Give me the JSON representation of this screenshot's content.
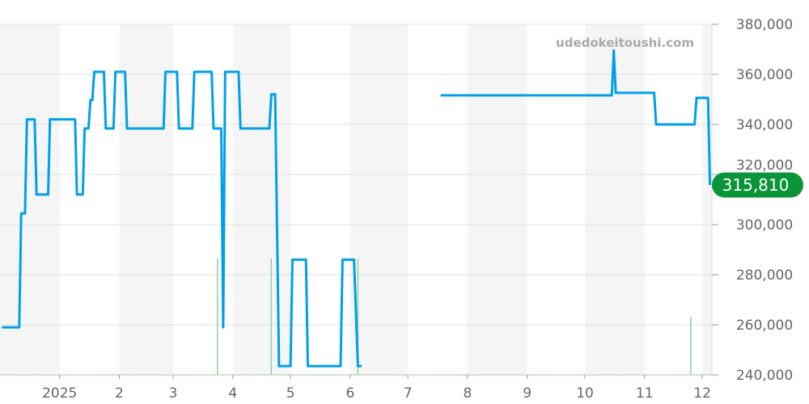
{
  "chart_data": {
    "type": "line",
    "watermark": "udedokeitoushi.com",
    "x_range": [
      "2024-12-01",
      "2025-12-06"
    ],
    "ylim": [
      240000,
      380000
    ],
    "y_ticks": [
      "240,000",
      "260,000",
      "280,000",
      "300,000",
      "320,000",
      "340,000",
      "360,000",
      "380,000"
    ],
    "y_tick_values": [
      240000,
      260000,
      280000,
      300000,
      320000,
      340000,
      360000,
      380000
    ],
    "x_ticks": [
      {
        "date": "2025-01-01",
        "label": "2025"
      },
      {
        "date": "2025-02-01",
        "label": "2"
      },
      {
        "date": "2025-03-01",
        "label": "3"
      },
      {
        "date": "2025-04-01",
        "label": "4"
      },
      {
        "date": "2025-05-01",
        "label": "5"
      },
      {
        "date": "2025-06-01",
        "label": "6"
      },
      {
        "date": "2025-07-01",
        "label": "7"
      },
      {
        "date": "2025-08-01",
        "label": "8"
      },
      {
        "date": "2025-09-01",
        "label": "9"
      },
      {
        "date": "2025-10-01",
        "label": "10"
      },
      {
        "date": "2025-11-01",
        "label": "11"
      },
      {
        "date": "2025-12-01",
        "label": "12"
      }
    ],
    "grid": true,
    "alternating_month_bands": true,
    "colors": {
      "price_line": "#00a0e9",
      "volume": "#8fd19a",
      "badge": "#0a9438",
      "band": "#f5f5f5",
      "grid": "#e0e0e0"
    },
    "last_price_label": "315,810",
    "last_price": 315810,
    "price_series": [
      [
        "2024-12-02",
        259000
      ],
      [
        "2024-12-11",
        259000
      ],
      [
        "2024-12-12",
        304500
      ],
      [
        "2024-12-14",
        304500
      ],
      [
        "2024-12-15",
        342000
      ],
      [
        "2024-12-19",
        342000
      ],
      [
        "2024-12-20",
        312000
      ],
      [
        "2024-12-26",
        312000
      ],
      [
        "2024-12-27",
        342000
      ],
      [
        "2025-01-09",
        342000
      ],
      [
        "2025-01-10",
        312000
      ],
      [
        "2025-01-13",
        312000
      ],
      [
        "2025-01-14",
        338400
      ],
      [
        "2025-01-16",
        338400
      ],
      [
        "2025-01-17",
        349700
      ],
      [
        "2025-01-18",
        349700
      ],
      [
        "2025-01-19",
        361000
      ],
      [
        "2025-01-24",
        361000
      ],
      [
        "2025-01-25",
        338400
      ],
      [
        "2025-01-29",
        338400
      ],
      [
        "2025-01-30",
        361000
      ],
      [
        "2025-02-04",
        361000
      ],
      [
        "2025-02-05",
        338400
      ],
      [
        "2025-02-24",
        338400
      ],
      [
        "2025-02-25",
        361000
      ],
      [
        "2025-03-03",
        361000
      ],
      [
        "2025-03-04",
        338400
      ],
      [
        "2025-03-11",
        338400
      ],
      [
        "2025-03-12",
        361000
      ],
      [
        "2025-03-21",
        361000
      ],
      [
        "2025-03-22",
        338400
      ],
      [
        "2025-03-26",
        338400
      ],
      [
        "2025-03-27",
        259000
      ],
      [
        "2025-03-28",
        361000
      ],
      [
        "2025-04-04",
        361000
      ],
      [
        "2025-04-05",
        338400
      ],
      [
        "2025-04-20",
        338400
      ],
      [
        "2025-04-21",
        352000
      ],
      [
        "2025-04-23",
        352000
      ],
      [
        "2025-04-25",
        243500
      ],
      [
        "2025-05-01",
        243500
      ],
      [
        "2025-05-02",
        286000
      ],
      [
        "2025-05-09",
        286000
      ],
      [
        "2025-05-10",
        243500
      ],
      [
        "2025-05-27",
        243500
      ],
      [
        "2025-05-28",
        286000
      ],
      [
        "2025-06-03",
        286000
      ],
      [
        "2025-06-05",
        243500
      ],
      [
        "2025-06-07",
        243500
      ],
      null,
      [
        "2025-07-18",
        351600
      ],
      [
        "2025-10-15",
        351600
      ],
      [
        "2025-10-16",
        369500
      ],
      [
        "2025-10-17",
        352600
      ],
      [
        "2025-11-06",
        352600
      ],
      [
        "2025-11-07",
        340000
      ],
      [
        "2025-11-27",
        340000
      ],
      [
        "2025-11-28",
        350600
      ],
      [
        "2025-12-04",
        350600
      ],
      [
        "2025-12-05",
        315810
      ]
    ],
    "volume_series": [
      [
        "2025-03-24",
        2
      ],
      [
        "2025-04-21",
        2
      ],
      [
        "2025-06-05",
        2
      ],
      [
        "2025-11-25",
        1
      ]
    ]
  }
}
